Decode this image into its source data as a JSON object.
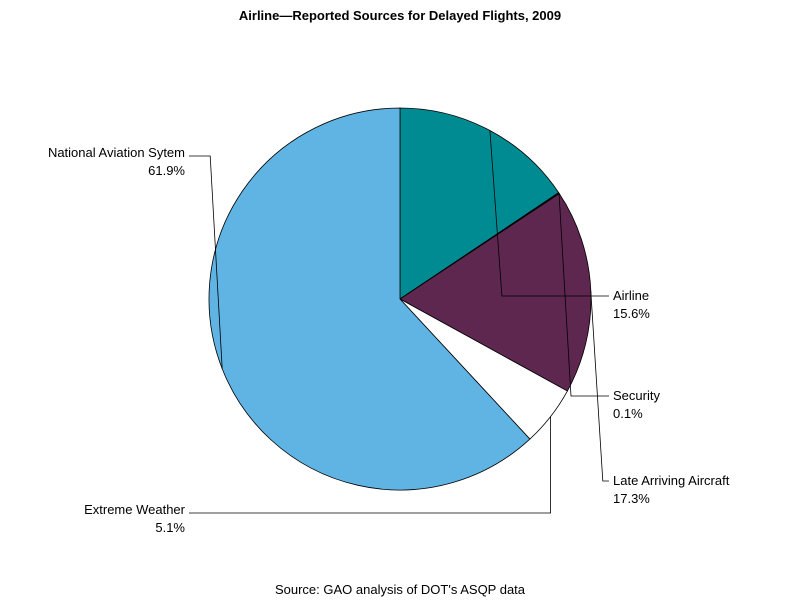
{
  "chart_data": {
    "type": "pie",
    "title": "Airline—Reported Sources for Delayed Flights, 2009",
    "source": "Source: GAO analysis of DOT's ASQP data",
    "slices": [
      {
        "label": "Airline",
        "value": 15.6,
        "value_label": "15.6%",
        "color": "#008b92"
      },
      {
        "label": "Security",
        "value": 0.1,
        "value_label": "0.1%",
        "color": "#1a1a2e"
      },
      {
        "label": "Late Arriving Aircraft",
        "value": 17.3,
        "value_label": "17.3%",
        "color": "#5e2750"
      },
      {
        "label": "Extreme Weather",
        "value": 5.1,
        "value_label": "5.1%",
        "color": "#ffffff"
      },
      {
        "label": "National Aviation Sytem",
        "value": 61.9,
        "value_label": "61.9%",
        "color": "#60b4e3"
      }
    ]
  }
}
